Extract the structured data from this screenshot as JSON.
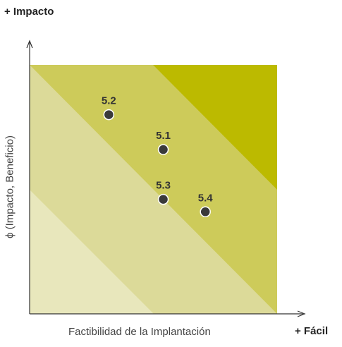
{
  "chart_data": {
    "type": "scatter",
    "xlabel": "Factibilidad de la Implantación",
    "ylabel": "ϕ (Impacto, Beneficio)",
    "x_axis_end_label": "+ Fácil",
    "y_axis_end_label": "+ Impacto",
    "xlim": [
      0,
      10
    ],
    "ylim": [
      0,
      10
    ],
    "grid": false,
    "zones": [
      {
        "level": "low",
        "color": "#e8e7bc"
      },
      {
        "level": "medium-low",
        "color": "#dcda99"
      },
      {
        "level": "medium-high",
        "color": "#cdcb5a"
      },
      {
        "level": "high",
        "color": "#bcba00"
      }
    ],
    "points": [
      {
        "label": "5.2",
        "x": 3.2,
        "y": 8.0
      },
      {
        "label": "5.1",
        "x": 5.4,
        "y": 6.6
      },
      {
        "label": "5.3",
        "x": 5.4,
        "y": 4.6
      },
      {
        "label": "5.4",
        "x": 7.1,
        "y": 4.1
      }
    ],
    "point_color": "#3a3a3a"
  }
}
